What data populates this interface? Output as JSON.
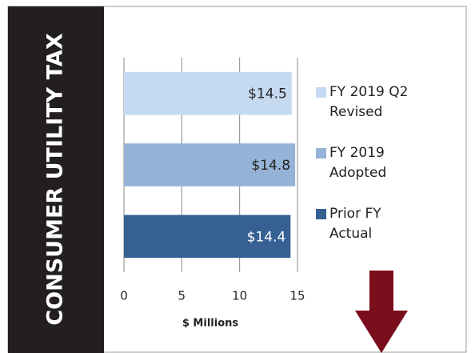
{
  "chart_data": {
    "type": "bar",
    "orientation": "horizontal",
    "title": "CONSUMER UTILITY TAX",
    "xlabel": "$ Millions",
    "series": [
      {
        "name": "FY 2019 Q2 Revised",
        "color": "#c5d9f1",
        "values": [
          14.5
        ],
        "value_labels": [
          "$14.5"
        ]
      },
      {
        "name": "FY 2019 Adopted",
        "color": "#95b3d7",
        "values": [
          14.8
        ],
        "value_labels": [
          "$14.8"
        ]
      },
      {
        "name": "Prior FY Actual",
        "color": "#366092",
        "values": [
          14.4
        ],
        "value_labels": [
          "$14.4"
        ]
      }
    ],
    "xlim": [
      0,
      15
    ],
    "xticks": [
      0,
      5,
      10,
      15
    ],
    "grid": true
  }
}
